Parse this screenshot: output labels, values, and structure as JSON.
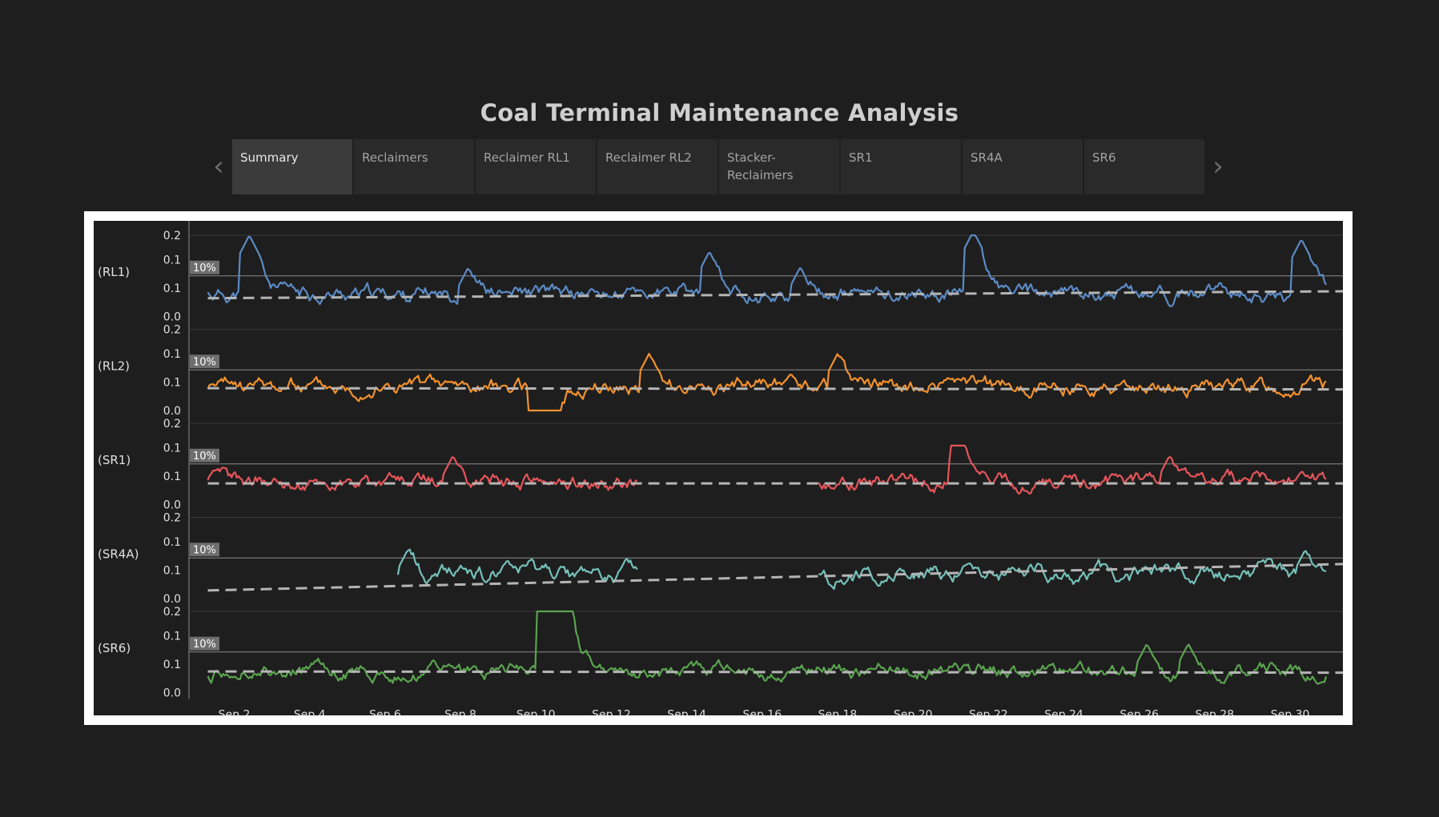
{
  "dashboard": {
    "title": "Coal Terminal Maintenance Analysis"
  },
  "tabs": [
    {
      "label": "Summary",
      "active": true
    },
    {
      "label": "Reclaimers",
      "active": false
    },
    {
      "label": "Reclaimer RL1",
      "active": false
    },
    {
      "label": "Reclaimer RL2",
      "active": false
    },
    {
      "label": "Stacker-\nReclaimers",
      "active": false
    },
    {
      "label": "SR1",
      "active": false
    },
    {
      "label": "SR4A",
      "active": false
    },
    {
      "label": "SR6",
      "active": false
    }
  ],
  "nav": {
    "prev_icon": "chevron-left-icon",
    "next_icon": "chevron-right-icon"
  },
  "chart_data": {
    "type": "line",
    "x_tick_labels": [
      "Sep 2",
      "Sep 4",
      "Sep 6",
      "Sep 8",
      "Sep 10",
      "Sep 12",
      "Sep 14",
      "Sep 16",
      "Sep 18",
      "Sep 20",
      "Sep 22",
      "Sep 24",
      "Sep 26",
      "Sep 28",
      "Sep 30"
    ],
    "x_tick_days": [
      2,
      4,
      6,
      8,
      10,
      12,
      14,
      16,
      18,
      20,
      22,
      24,
      26,
      28,
      30
    ],
    "x_range_days": [
      0.8,
      31.4
    ],
    "y_tick_labels": [
      "0.2",
      "0.1",
      "0.1",
      "0.0"
    ],
    "y_range": [
      0,
      0.2
    ],
    "reference_line_label": "10%",
    "reference_line_value": 0.1,
    "trend_line": true,
    "grid": "horizontal",
    "series": [
      {
        "name": "(RL1)",
        "color": "#5b8ac4",
        "seed": 11,
        "base": 0.055,
        "amp": 0.034,
        "trend": [
          0.045,
          0.062
        ],
        "spikes": [
          [
            2.4,
            0.2
          ],
          [
            14.6,
            0.16
          ],
          [
            21.6,
            0.21
          ],
          [
            30.3,
            0.19
          ],
          [
            8.2,
            0.12
          ],
          [
            17.0,
            0.12
          ]
        ],
        "gaps": [],
        "flats": []
      },
      {
        "name": "(RL2)",
        "color": "#f2912e",
        "seed": 23,
        "base": 0.06,
        "amp": 0.034,
        "trend": [
          0.055,
          0.052
        ],
        "spikes": [
          [
            13.0,
            0.14
          ],
          [
            18.0,
            0.14
          ]
        ],
        "gaps": [],
        "flats": [
          [
            9.8,
            10.7,
            0.0
          ]
        ]
      },
      {
        "name": "(SR1)",
        "color": "#e4555b",
        "seed": 37,
        "base": 0.055,
        "amp": 0.034,
        "trend": [
          0.052,
          0.052
        ],
        "spikes": [
          [
            21.2,
            0.15
          ],
          [
            7.8,
            0.12
          ],
          [
            26.8,
            0.12
          ]
        ],
        "gaps": [
          [
            12.7,
            17.5
          ]
        ],
        "flats": [
          [
            21.0,
            21.4,
            0.145
          ]
        ]
      },
      {
        "name": "(SR4A)",
        "color": "#76c0ba",
        "seed": 53,
        "base": 0.06,
        "amp": 0.036,
        "trend": [
          0.02,
          0.085
        ],
        "spikes": [
          [
            6.6,
            0.12
          ],
          [
            12.4,
            0.1
          ],
          [
            30.4,
            0.12
          ]
        ],
        "gaps": [
          [
            0,
            6.3
          ],
          [
            12.7,
            17.5
          ]
        ],
        "flats": []
      },
      {
        "name": "(SR6)",
        "color": "#5aa34f",
        "seed": 71,
        "base": 0.052,
        "amp": 0.032,
        "trend": [
          0.052,
          0.049
        ],
        "spikes": [
          [
            26.2,
            0.12
          ],
          [
            27.3,
            0.12
          ]
        ],
        "gaps": [],
        "flats": [
          [
            10.0,
            11.0,
            0.2
          ]
        ]
      }
    ]
  }
}
